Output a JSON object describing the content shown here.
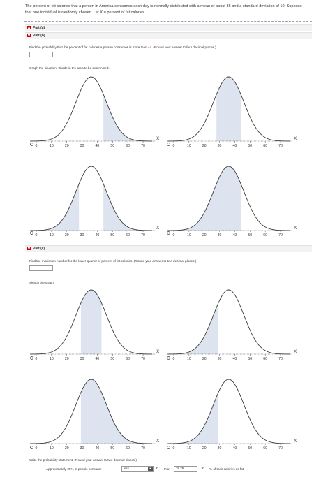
{
  "intro": "The percent of fat calories that a person in America consumes each day is normally distributed with a mean of about 36 and a standard deviation of 10. Suppose that one individual is randomly chosen. Let X = percent of fat calories.",
  "parts": {
    "a": {
      "label": "Part (a)",
      "expand_icon": "plus-square-icon"
    },
    "b": {
      "label": "Part (b)",
      "collapse_icon": "minus-square-icon",
      "question_before": "Find the probability that the percent of fat calories a person consumes is more than ",
      "question_value": "44",
      "question_after": ". (Round your answer to four decimal places.)",
      "answer_value": "",
      "graph_prompt": "Graph the situation. Shade in the area to be determined."
    },
    "c": {
      "label": "Part (c)",
      "collapse_icon": "minus-square-icon",
      "question": "Find the maximum number for the lower quarter of percent of fat calories. (Round your answer to two decimal places.)",
      "answer_value": "",
      "graph_prompt": "Sketch the graph.",
      "statement_prompt": "Write the probability statement. (Round your answer to two decimal places.)",
      "statement_prefix": "Approximately 25% of people consume",
      "statement_select": "less",
      "statement_mid": "than",
      "statement_value": "29.25",
      "statement_suffix": "% of their calories as fat."
    }
  },
  "axis": {
    "x_label": "X",
    "ticks": [
      "0",
      "10",
      "20",
      "30",
      "40",
      "50",
      "60",
      "70"
    ]
  },
  "graph_options_b": [
    {
      "shade": "right",
      "from": 44,
      "to": 70
    },
    {
      "shade": "between",
      "from": 28,
      "to": 44
    },
    {
      "shade": "tails",
      "from": 28,
      "to": 44
    },
    {
      "shade": "left",
      "from": 0,
      "to": 44
    }
  ],
  "graph_options_c": [
    {
      "shade": "between",
      "from": 29.25,
      "to": 42.75
    },
    {
      "shade": "left",
      "from": 0,
      "to": 29.25
    },
    {
      "shade": "between",
      "from": 29.25,
      "to": 70
    },
    {
      "shade": "left",
      "from": 0,
      "to": 29.25
    }
  ],
  "colors": {
    "shade": "#dde3ef",
    "curve": "#3a3a3a",
    "check": "#4a9a2a",
    "value_red": "#c00"
  }
}
